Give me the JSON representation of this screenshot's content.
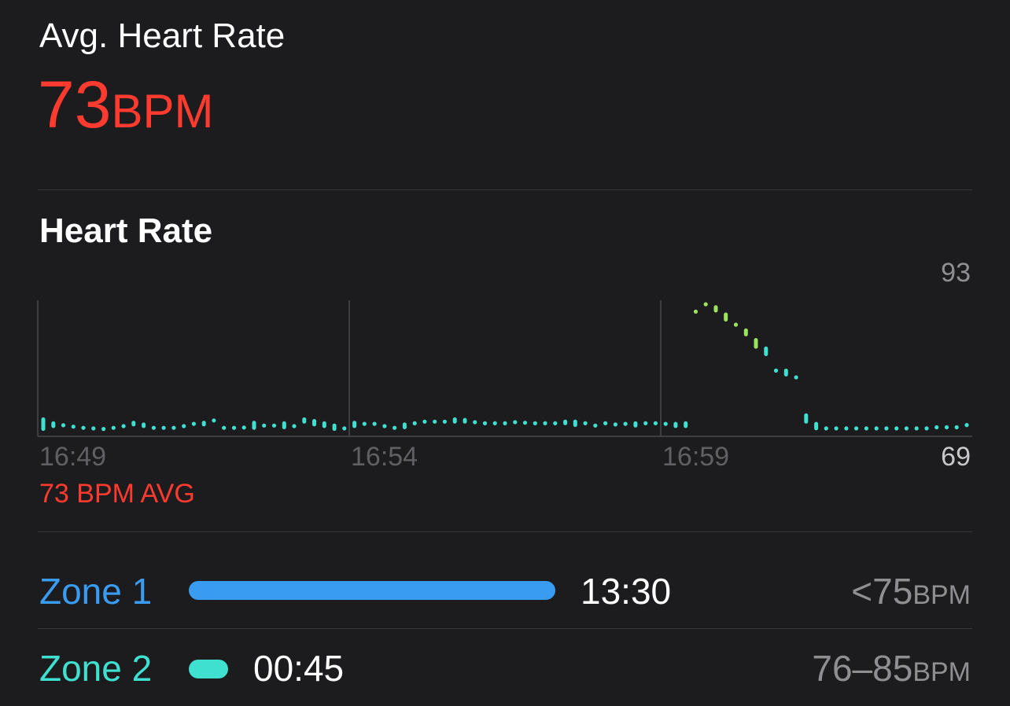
{
  "summary": {
    "label": "Avg. Heart Rate",
    "value": "73",
    "unit": "BPM"
  },
  "section_title": "Heart Rate",
  "chart_caption": "73 BPM AVG",
  "colors": {
    "background": "#1c1c1e",
    "accent_red": "#ff3b30",
    "zone1": "#3a9cf0",
    "zone2": "#3fe0d0",
    "high_reading": "#9be35f",
    "text_secondary": "#8e8e93"
  },
  "chart_data": {
    "type": "scatter",
    "title": "Heart Rate",
    "x_axis": {
      "ticks": [
        "16:49",
        "16:54",
        "16:59"
      ]
    },
    "y_axis": {
      "max_label": "93",
      "min_label": "69",
      "ylim": [
        69,
        93
      ]
    },
    "grid": true,
    "samples_note": "",
    "samples": [
      [
        70.3,
        72.0
      ],
      [
        70.8,
        71.3
      ],
      [
        71.0,
        70.9
      ],
      [
        70.6,
        70.8
      ],
      [
        70.4,
        70.6
      ],
      [
        70.4,
        70.4
      ],
      [
        70.3,
        70.3
      ],
      [
        70.5,
        70.5
      ],
      [
        70.8,
        70.8
      ],
      [
        71.1,
        71.4
      ],
      [
        70.8,
        71.1
      ],
      [
        70.5,
        70.5
      ],
      [
        70.5,
        70.5
      ],
      [
        70.5,
        70.5
      ],
      [
        70.8,
        70.8
      ],
      [
        71.1,
        71.3
      ],
      [
        71.1,
        71.4
      ],
      [
        71.7,
        71.9
      ],
      [
        70.5,
        70.5
      ],
      [
        70.5,
        70.5
      ],
      [
        70.5,
        70.6
      ],
      [
        70.5,
        71.4
      ],
      [
        70.9,
        70.9
      ],
      [
        70.9,
        70.9
      ],
      [
        70.6,
        71.3
      ],
      [
        70.8,
        70.8
      ],
      [
        71.6,
        72.0
      ],
      [
        71.1,
        71.7
      ],
      [
        70.8,
        71.3
      ],
      [
        70.3,
        70.9
      ],
      [
        70.3,
        70.5
      ],
      [
        70.8,
        71.4
      ],
      [
        71.1,
        71.3
      ],
      [
        71.1,
        71.3
      ],
      [
        70.7,
        70.9
      ],
      [
        70.5,
        70.5
      ],
      [
        70.6,
        71.1
      ],
      [
        71.2,
        71.4
      ],
      [
        71.6,
        71.6
      ],
      [
        71.6,
        71.6
      ],
      [
        71.6,
        71.6
      ],
      [
        71.6,
        72.0
      ],
      [
        71.6,
        71.9
      ],
      [
        71.5,
        71.5
      ],
      [
        71.3,
        71.3
      ],
      [
        71.3,
        71.3
      ],
      [
        71.3,
        71.3
      ],
      [
        71.5,
        71.5
      ],
      [
        71.4,
        71.4
      ],
      [
        71.3,
        71.3
      ],
      [
        71.3,
        71.3
      ],
      [
        71.3,
        71.3
      ],
      [
        71.3,
        71.6
      ],
      [
        71.0,
        71.6
      ],
      [
        71.3,
        71.3
      ],
      [
        70.9,
        70.9
      ],
      [
        71.3,
        71.3
      ],
      [
        71.1,
        71.1
      ],
      [
        71.2,
        71.2
      ],
      [
        70.9,
        71.3
      ],
      [
        71.3,
        71.3
      ],
      [
        71.3,
        71.3
      ],
      [
        71.2,
        71.2
      ],
      [
        70.8,
        71.2
      ],
      [
        70.8,
        71.3
      ],
      [
        91.0,
        91.0
      ],
      [
        92.3,
        92.3
      ],
      [
        91.2,
        91.8
      ],
      [
        89.6,
        90.5
      ],
      [
        88.7,
        88.7
      ],
      [
        87.0,
        87.7
      ],
      [
        84.8,
        86.0
      ],
      [
        83.5,
        84.5
      ],
      [
        80.6,
        80.6
      ],
      [
        79.9,
        80.6
      ],
      [
        79.4,
        79.4
      ],
      [
        71.6,
        72.7
      ],
      [
        70.4,
        71.2
      ],
      [
        70.4,
        70.4
      ],
      [
        70.4,
        70.4
      ],
      [
        70.4,
        70.4
      ],
      [
        70.4,
        70.4
      ],
      [
        70.4,
        70.4
      ],
      [
        70.4,
        70.4
      ],
      [
        70.4,
        70.4
      ],
      [
        70.4,
        70.4
      ],
      [
        70.4,
        70.4
      ],
      [
        70.4,
        70.4
      ],
      [
        70.4,
        70.4
      ],
      [
        70.6,
        70.6
      ],
      [
        70.6,
        70.6
      ],
      [
        70.6,
        70.6
      ],
      [
        71.0,
        71.0
      ]
    ]
  },
  "zones": [
    {
      "label": "Zone 1",
      "duration": "13:30",
      "range": "<75",
      "unit": "BPM",
      "color": "#3a9cf0",
      "fraction": 0.947
    },
    {
      "label": "Zone 2",
      "duration": "00:45",
      "range": "76–85",
      "unit": "BPM",
      "color": "#3fe0d0",
      "fraction": 0.053
    }
  ]
}
